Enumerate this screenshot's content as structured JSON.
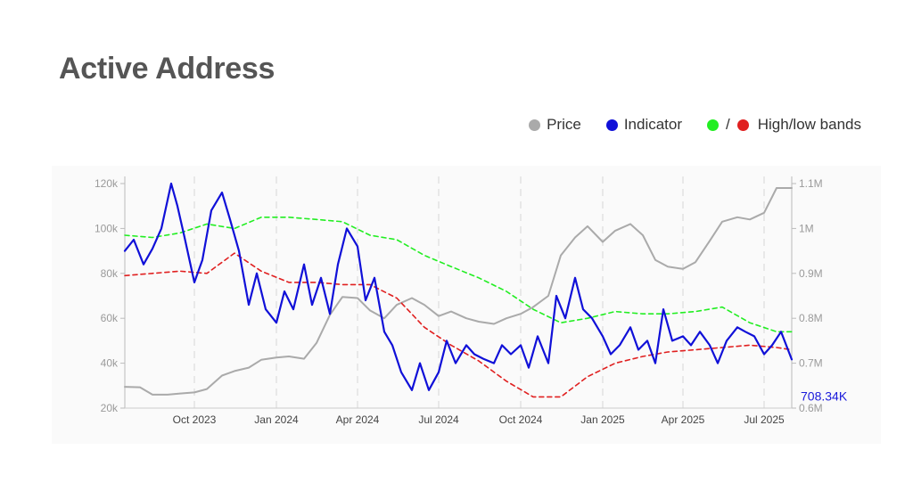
{
  "title": "Active Address",
  "legend": {
    "price_label": "Price",
    "indicator_label": "Indicator",
    "bands_label": "High/low bands",
    "bands_separator": "/"
  },
  "colors": {
    "price": "#aaaaaa",
    "indicator": "#1010d8",
    "high_band": "#22ee22",
    "low_band": "#e02020"
  },
  "chart_data": {
    "type": "line",
    "title": "Active Address",
    "x_range": [
      "2023-07-15",
      "2025-08-01"
    ],
    "x_ticks": [
      {
        "date": "2023-10-01",
        "label": "Oct 2023"
      },
      {
        "date": "2024-01-01",
        "label": "Jan 2024"
      },
      {
        "date": "2024-04-01",
        "label": "Apr 2024"
      },
      {
        "date": "2024-07-01",
        "label": "Jul 2024"
      },
      {
        "date": "2024-10-01",
        "label": "Oct 2024"
      },
      {
        "date": "2025-01-01",
        "label": "Jan 2025"
      },
      {
        "date": "2025-04-01",
        "label": "Apr 2025"
      },
      {
        "date": "2025-07-01",
        "label": "Jul 2025"
      }
    ],
    "y_left": {
      "min": 20000,
      "max": 120000,
      "ticks": [
        {
          "value": 20000,
          "label": "20k"
        },
        {
          "value": 40000,
          "label": "40k"
        },
        {
          "value": 60000,
          "label": "60k"
        },
        {
          "value": 80000,
          "label": "80k"
        },
        {
          "value": 100000,
          "label": "100k"
        },
        {
          "value": 120000,
          "label": "120k"
        }
      ]
    },
    "y_right": {
      "min": 600000,
      "max": 1100000,
      "ticks": [
        {
          "value": 600000,
          "label": "0.6M"
        },
        {
          "value": 700000,
          "label": "0.7M"
        },
        {
          "value": 800000,
          "label": "0.8M"
        },
        {
          "value": 900000,
          "label": "0.9M"
        },
        {
          "value": 1000000,
          "label": "1M"
        },
        {
          "value": 1100000,
          "label": "1.1M"
        }
      ]
    },
    "grid": "vertical dashed at x ticks",
    "last_value_label": "708.34K",
    "series": [
      {
        "name": "Price",
        "axis": "left",
        "x": [
          "2023-07-15",
          "2023-08-01",
          "2023-08-15",
          "2023-09-01",
          "2023-09-15",
          "2023-10-01",
          "2023-10-15",
          "2023-11-01",
          "2023-11-15",
          "2023-12-01",
          "2023-12-15",
          "2024-01-01",
          "2024-01-15",
          "2024-02-01",
          "2024-02-15",
          "2024-03-01",
          "2024-03-15",
          "2024-04-01",
          "2024-04-15",
          "2024-05-01",
          "2024-05-15",
          "2024-06-01",
          "2024-06-15",
          "2024-07-01",
          "2024-07-15",
          "2024-08-01",
          "2024-08-15",
          "2024-09-01",
          "2024-09-15",
          "2024-10-01",
          "2024-10-15",
          "2024-11-01",
          "2024-11-15",
          "2024-12-01",
          "2024-12-15",
          "2025-01-01",
          "2025-01-15",
          "2025-02-01",
          "2025-02-15",
          "2025-03-01",
          "2025-03-15",
          "2025-04-01",
          "2025-04-15",
          "2025-05-01",
          "2025-05-15",
          "2025-06-01",
          "2025-06-15",
          "2025-07-01",
          "2025-07-15",
          "2025-08-01"
        ],
        "values": [
          29500,
          29300,
          26000,
          26000,
          26500,
          27000,
          28500,
          34500,
          36500,
          38000,
          41500,
          42500,
          43000,
          42000,
          49000,
          61500,
          69500,
          69000,
          63500,
          60000,
          66000,
          69000,
          66000,
          61000,
          63000,
          60000,
          58500,
          57500,
          60000,
          62000,
          65000,
          70000,
          88000,
          96000,
          101000,
          94000,
          99000,
          102000,
          97000,
          86000,
          83000,
          82000,
          85000,
          94500,
          103000,
          105000,
          104000,
          107000,
          118000,
          118000
        ]
      },
      {
        "name": "Indicator",
        "axis": "right",
        "x": [
          "2023-07-15",
          "2023-07-25",
          "2023-08-05",
          "2023-08-15",
          "2023-08-25",
          "2023-09-05",
          "2023-09-12",
          "2023-09-20",
          "2023-10-01",
          "2023-10-10",
          "2023-10-20",
          "2023-11-01",
          "2023-11-10",
          "2023-11-20",
          "2023-12-01",
          "2023-12-10",
          "2023-12-20",
          "2024-01-01",
          "2024-01-10",
          "2024-01-20",
          "2024-02-01",
          "2024-02-10",
          "2024-02-20",
          "2024-03-01",
          "2024-03-10",
          "2024-03-20",
          "2024-04-01",
          "2024-04-10",
          "2024-04-20",
          "2024-05-01",
          "2024-05-10",
          "2024-05-20",
          "2024-06-01",
          "2024-06-10",
          "2024-06-20",
          "2024-07-01",
          "2024-07-10",
          "2024-07-20",
          "2024-08-01",
          "2024-08-10",
          "2024-08-20",
          "2024-09-01",
          "2024-09-10",
          "2024-09-20",
          "2024-10-01",
          "2024-10-10",
          "2024-10-20",
          "2024-11-01",
          "2024-11-10",
          "2024-11-20",
          "2024-12-01",
          "2024-12-10",
          "2024-12-20",
          "2025-01-01",
          "2025-01-10",
          "2025-01-20",
          "2025-02-01",
          "2025-02-10",
          "2025-02-20",
          "2025-03-01",
          "2025-03-10",
          "2025-03-20",
          "2025-04-01",
          "2025-04-10",
          "2025-04-20",
          "2025-05-01",
          "2025-05-10",
          "2025-05-20",
          "2025-06-01",
          "2025-06-10",
          "2025-06-20",
          "2025-07-01",
          "2025-07-10",
          "2025-07-20",
          "2025-08-01"
        ],
        "values": [
          950000,
          975000,
          920000,
          955000,
          1000000,
          1100000,
          1050000,
          980000,
          880000,
          930000,
          1040000,
          1080000,
          1020000,
          950000,
          830000,
          900000,
          820000,
          790000,
          860000,
          820000,
          920000,
          830000,
          890000,
          810000,
          920000,
          1000000,
          960000,
          840000,
          890000,
          770000,
          740000,
          680000,
          640000,
          700000,
          640000,
          680000,
          750000,
          700000,
          740000,
          720000,
          710000,
          700000,
          740000,
          720000,
          740000,
          690000,
          760000,
          700000,
          850000,
          800000,
          890000,
          820000,
          800000,
          760000,
          720000,
          740000,
          780000,
          730000,
          750000,
          700000,
          820000,
          750000,
          760000,
          740000,
          770000,
          740000,
          700000,
          750000,
          780000,
          770000,
          760000,
          720000,
          740000,
          770000,
          708340
        ]
      },
      {
        "name": "High band",
        "axis": "right",
        "x": [
          "2023-07-15",
          "2023-08-15",
          "2023-09-15",
          "2023-10-15",
          "2023-11-15",
          "2023-12-15",
          "2024-01-15",
          "2024-02-15",
          "2024-03-15",
          "2024-04-15",
          "2024-05-15",
          "2024-06-15",
          "2024-07-15",
          "2024-08-15",
          "2024-09-15",
          "2024-10-15",
          "2024-11-15",
          "2024-12-15",
          "2025-01-15",
          "2025-02-15",
          "2025-03-15",
          "2025-04-15",
          "2025-05-15",
          "2025-06-15",
          "2025-07-15",
          "2025-08-01"
        ],
        "values": [
          985000,
          980000,
          990000,
          1010000,
          1000000,
          1025000,
          1025000,
          1020000,
          1015000,
          985000,
          975000,
          940000,
          915000,
          890000,
          860000,
          820000,
          790000,
          800000,
          815000,
          810000,
          810000,
          815000,
          825000,
          790000,
          770000,
          770000
        ]
      },
      {
        "name": "Low band",
        "axis": "right",
        "x": [
          "2023-07-15",
          "2023-08-15",
          "2023-09-15",
          "2023-10-15",
          "2023-11-15",
          "2023-12-15",
          "2024-01-15",
          "2024-02-15",
          "2024-03-15",
          "2024-04-15",
          "2024-05-15",
          "2024-06-15",
          "2024-07-15",
          "2024-08-15",
          "2024-09-15",
          "2024-10-15",
          "2024-11-15",
          "2024-12-15",
          "2025-01-15",
          "2025-02-15",
          "2025-03-15",
          "2025-04-15",
          "2025-05-15",
          "2025-06-15",
          "2025-07-15",
          "2025-08-01"
        ],
        "values": [
          895000,
          900000,
          905000,
          900000,
          945000,
          905000,
          880000,
          880000,
          875000,
          875000,
          845000,
          780000,
          740000,
          705000,
          660000,
          625000,
          625000,
          670000,
          700000,
          715000,
          725000,
          730000,
          735000,
          740000,
          735000,
          730000
        ]
      }
    ]
  }
}
